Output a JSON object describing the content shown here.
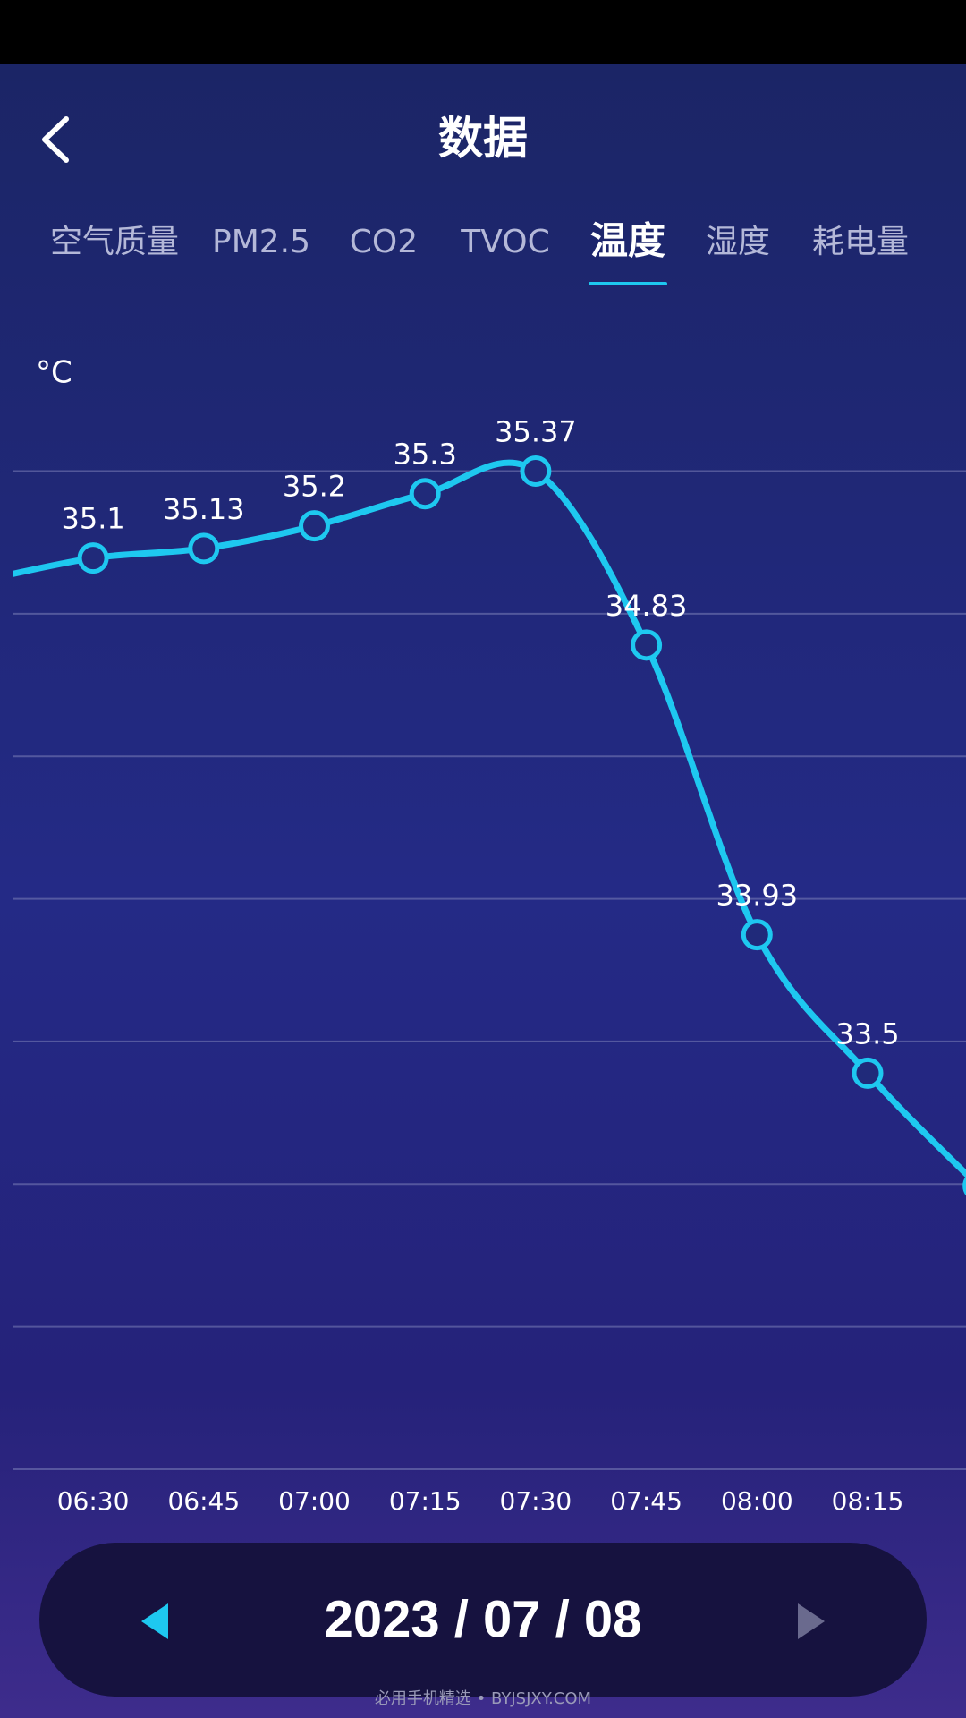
{
  "header": {
    "title": "数据"
  },
  "tabs": {
    "items": [
      "空气质量",
      "PM2.5",
      "CO2",
      "TVOC",
      "温度",
      "湿度",
      "耗电量"
    ],
    "active": 4
  },
  "chart_data": {
    "type": "line",
    "y_label": "°C",
    "categories": [
      null,
      "06:30",
      "06:45",
      "07:00",
      "07:15",
      "07:30",
      "07:45",
      "08:00",
      "08:15",
      null
    ],
    "values": [
      35.03,
      35.1,
      35.13,
      35.2,
      35.3,
      35.37,
      34.83,
      33.93,
      33.5,
      33.15
    ],
    "color": "#1ec8f0",
    "ylim": [
      32.27,
      35.37
    ],
    "grid": true
  },
  "date": "2023 / 07 / 08",
  "footer": "必用手机精选 • BYJSJXY.COM"
}
